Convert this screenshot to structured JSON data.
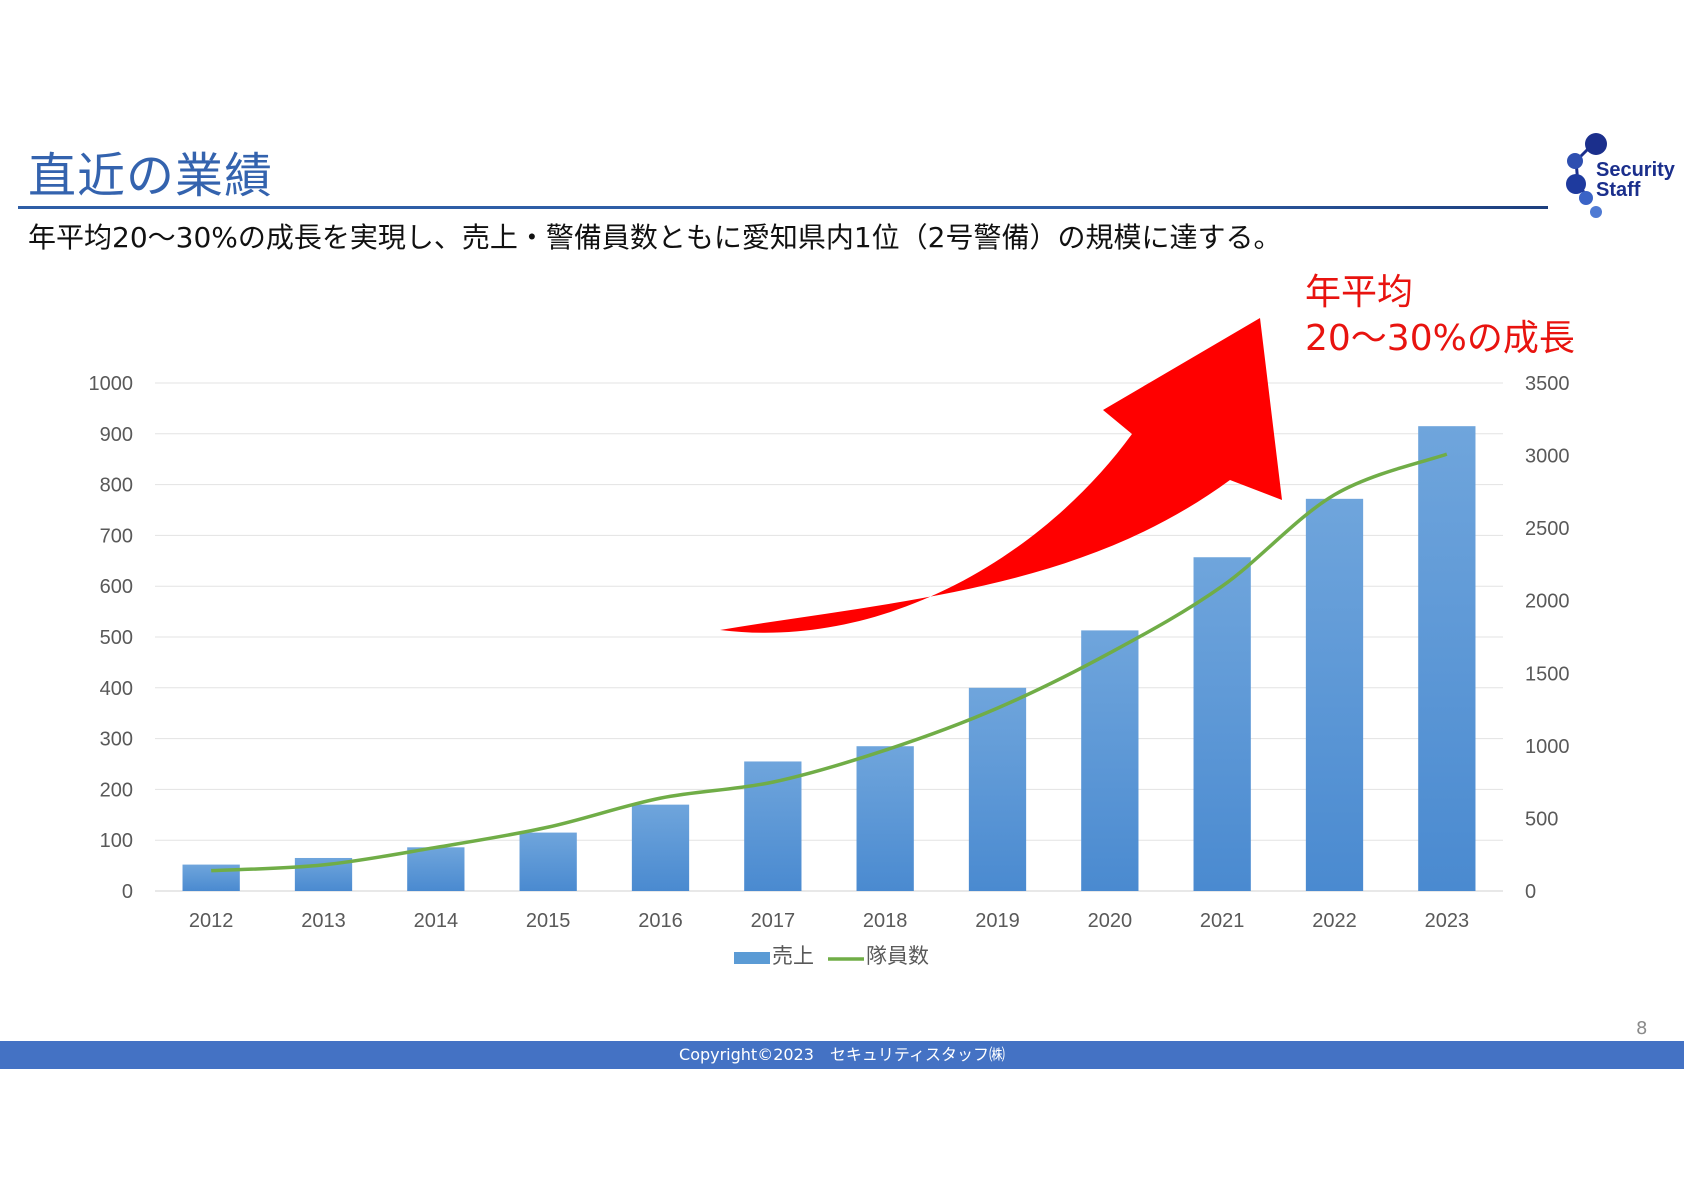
{
  "slide": {
    "title": "直近の業績",
    "subtitle": "年平均20～30%の成長を実現し、売上・警備員数ともに愛知県内1位（2号警備）の規模に達する。",
    "callout_line1": "年平均",
    "callout_line2": "20～30%の成長",
    "logo_line1": "Security",
    "logo_line2": "Staff",
    "footer": "Copyright©2023　セキュリティスタッフ㈱",
    "page_number": "8"
  },
  "colors": {
    "bar": "#5b9bd5",
    "line": "#70ad47",
    "arrow": "#ff0000",
    "title": "#3463ae",
    "footer_bar": "#4472c4"
  },
  "chart_data": {
    "type": "bar",
    "categories": [
      "2012",
      "2013",
      "2014",
      "2015",
      "2016",
      "2017",
      "2018",
      "2019",
      "2020",
      "2021",
      "2022",
      "2023"
    ],
    "series": [
      {
        "name": "売上",
        "type": "bar",
        "axis": "left",
        "values": [
          52,
          65,
          86,
          115,
          170,
          255,
          285,
          400,
          513,
          657,
          772,
          915
        ]
      },
      {
        "name": "隊員数",
        "type": "line",
        "axis": "right",
        "values": [
          140,
          180,
          300,
          440,
          640,
          750,
          970,
          1260,
          1640,
          2100,
          2730,
          3010
        ]
      }
    ],
    "y_left": {
      "min": 0,
      "max": 1000,
      "ticks": [
        0,
        100,
        200,
        300,
        400,
        500,
        600,
        700,
        800,
        900,
        1000
      ]
    },
    "y_right": {
      "min": 0,
      "max": 3500,
      "ticks": [
        0,
        500,
        1000,
        1500,
        2000,
        2500,
        3000,
        3500
      ]
    },
    "grid": true,
    "legend_position": "bottom"
  }
}
